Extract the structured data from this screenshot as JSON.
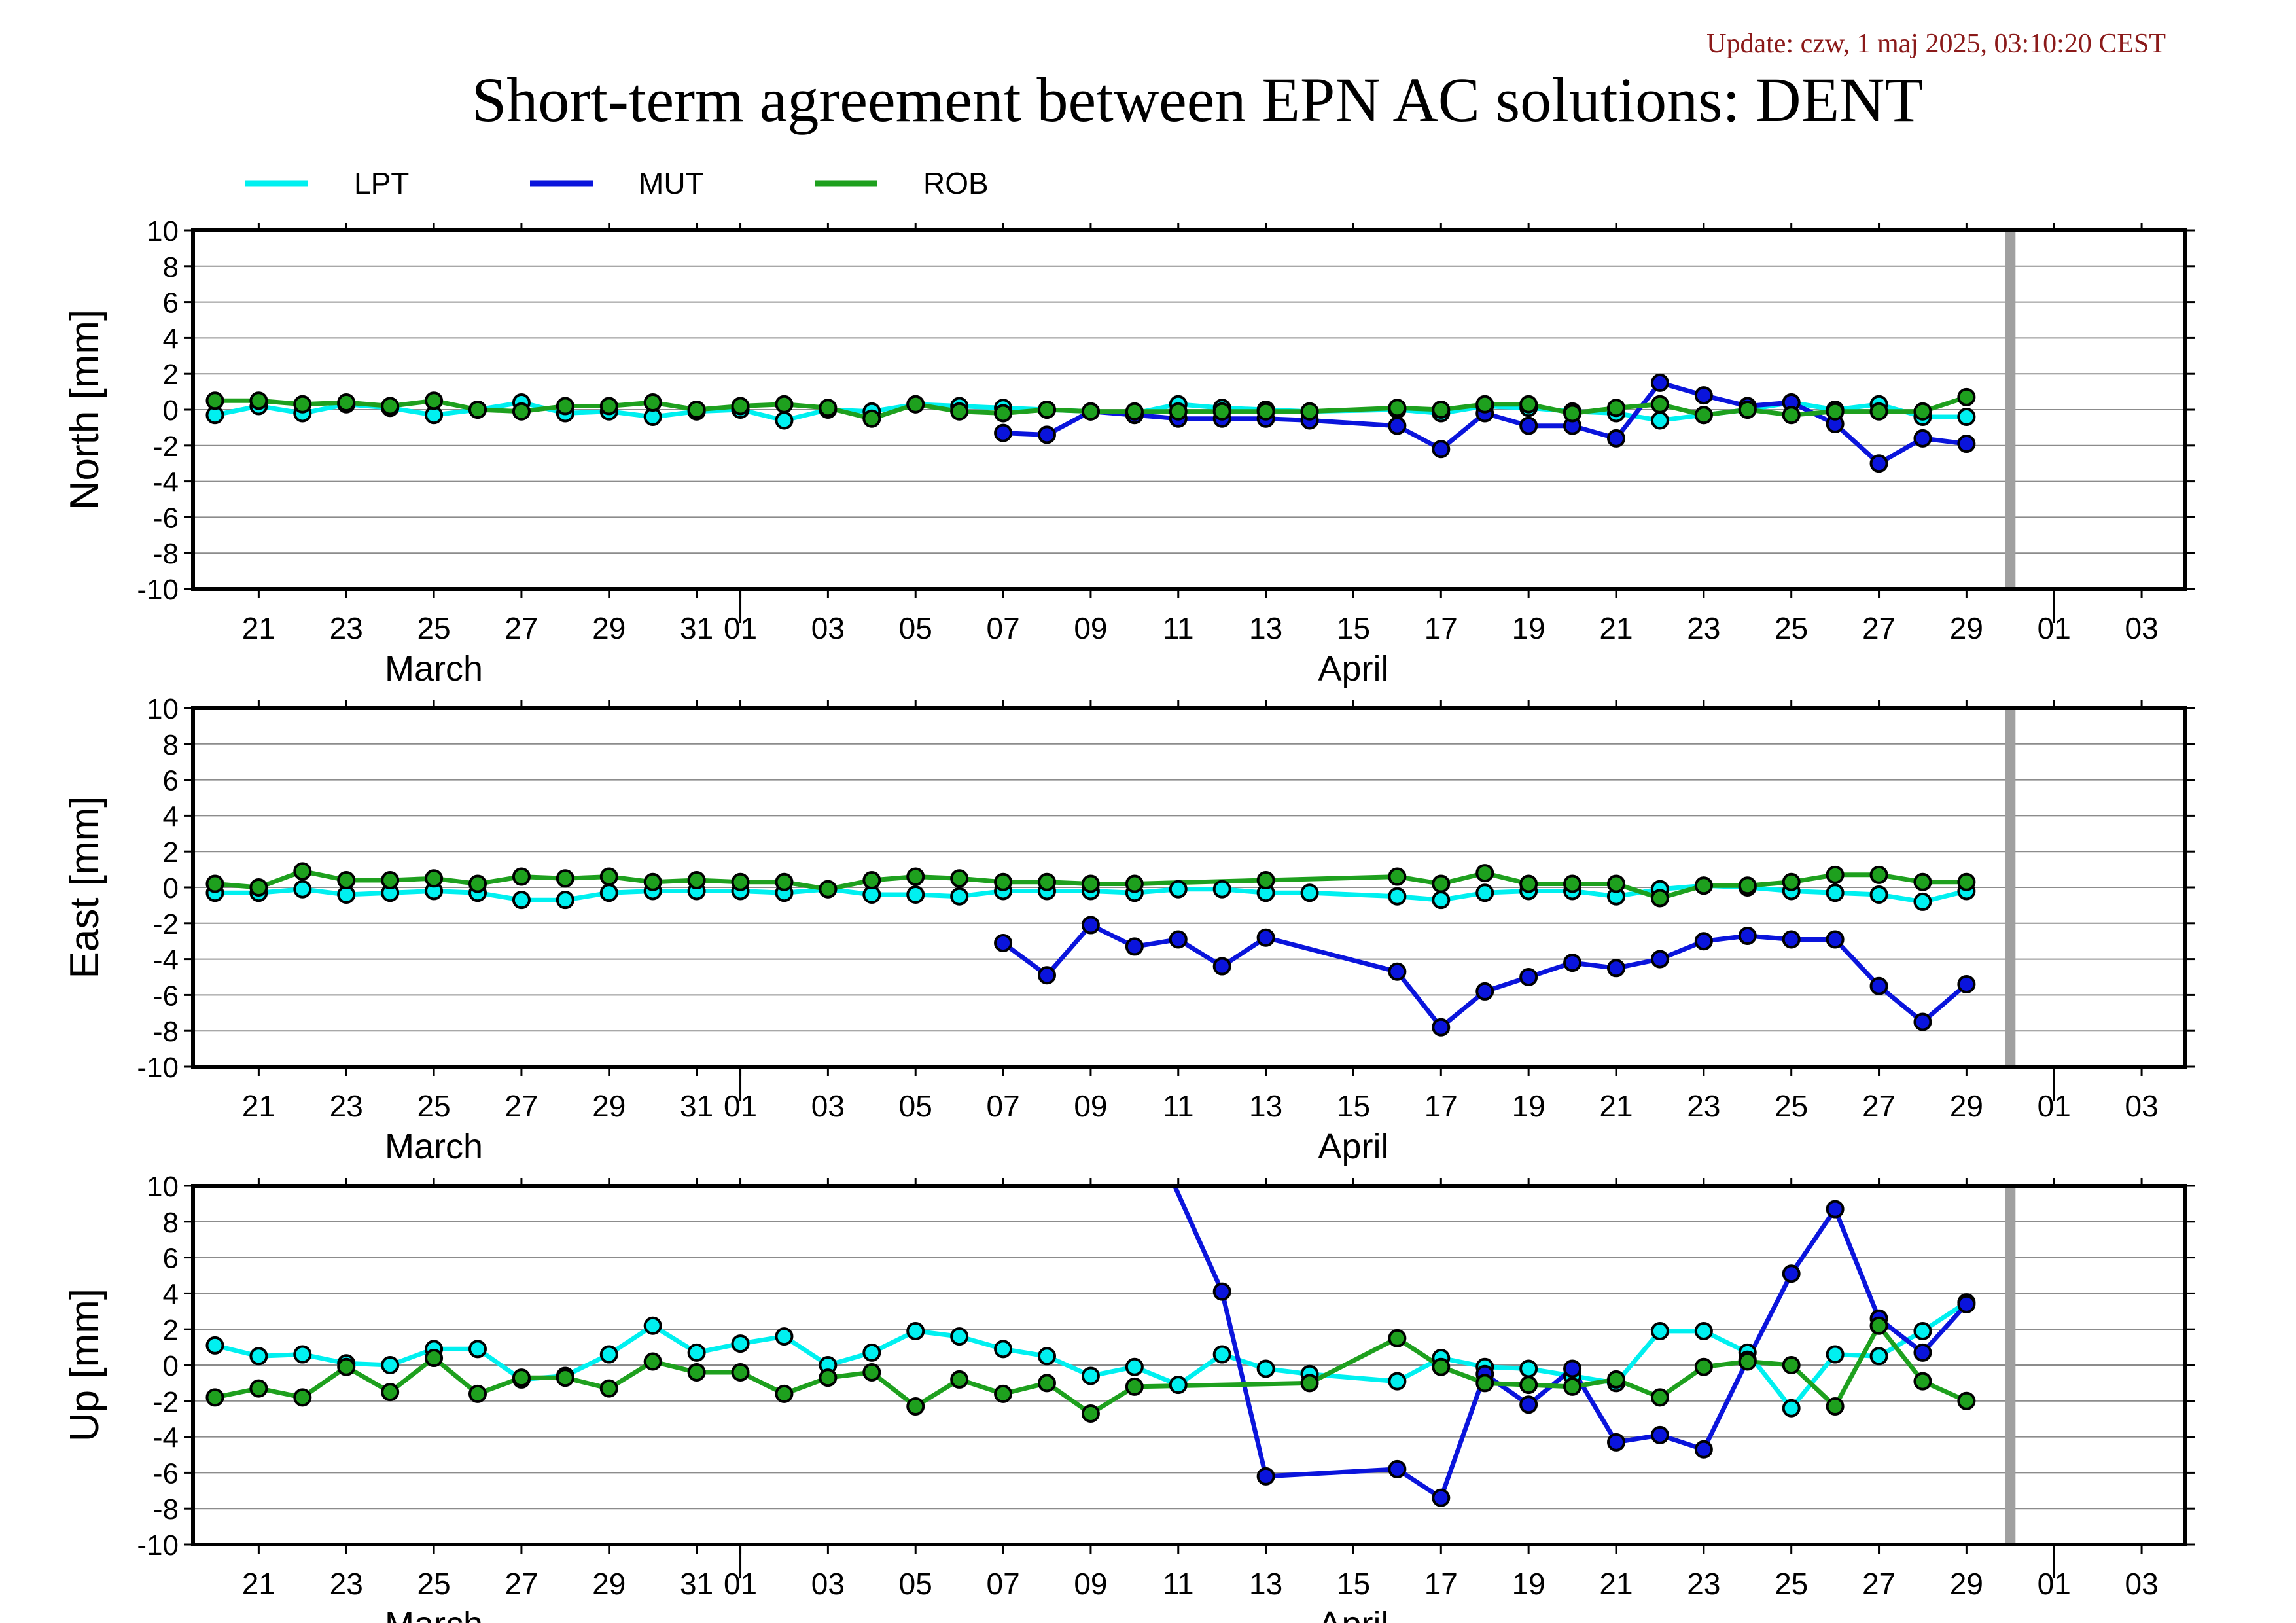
{
  "update_text": "Update: czw, 1 maj 2025, 03:10:20 CEST",
  "title": "Short-term agreement between EPN AC solutions: DENT",
  "colors": {
    "LPT": "#00f0f0",
    "MUT": "#0a14dc",
    "ROB": "#1ea01e",
    "marker_outline": "#000000",
    "today_bar": "#a0a0a0",
    "update_text": "#8b1a1a"
  },
  "chart_data": [
    {
      "type": "line",
      "panel": "north",
      "title": "Short-term agreement between EPN AC solutions: DENT",
      "ylabel": "North [mm]",
      "x_unit": "day",
      "x_range": [
        "2025-03-19T12:00",
        "2025-05-04"
      ],
      "ylim": [
        -10,
        10
      ],
      "yticks": [
        -10,
        -8,
        -6,
        -4,
        -2,
        0,
        2,
        4,
        6,
        8,
        10
      ],
      "xtick_labels": [
        "21",
        "23",
        "25",
        "27",
        "29",
        "31",
        "01",
        "03",
        "05",
        "07",
        "09",
        "11",
        "13",
        "15",
        "17",
        "19",
        "21",
        "23",
        "25",
        "27",
        "29",
        "01",
        "03"
      ],
      "xtick_dates": [
        "2025-03-21",
        "2025-03-23",
        "2025-03-25",
        "2025-03-27",
        "2025-03-29",
        "2025-03-31",
        "2025-04-01",
        "2025-04-03",
        "2025-04-05",
        "2025-04-07",
        "2025-04-09",
        "2025-04-11",
        "2025-04-13",
        "2025-04-15",
        "2025-04-17",
        "2025-04-19",
        "2025-04-21",
        "2025-04-23",
        "2025-04-25",
        "2025-04-27",
        "2025-04-29",
        "2025-05-01",
        "2025-05-03"
      ],
      "month_labels": [
        {
          "label": "March",
          "date": "2025-03-25"
        },
        {
          "label": "April",
          "date": "2025-04-15"
        }
      ],
      "month_boundaries": [
        "2025-04-01",
        "2025-05-01"
      ],
      "today_marker": "2025-04-30",
      "grid": "horizontal",
      "legend": "top",
      "series": [
        {
          "name": "LPT",
          "x": [
            "2025-03-20",
            "2025-03-21",
            "2025-03-22",
            "2025-03-23",
            "2025-03-24",
            "2025-03-25",
            "2025-03-26",
            "2025-03-27",
            "2025-03-28",
            "2025-03-29",
            "2025-03-30",
            "2025-03-31",
            "2025-04-01",
            "2025-04-02",
            "2025-04-03",
            "2025-04-04",
            "2025-04-05",
            "2025-04-06",
            "2025-04-07",
            "2025-04-08",
            "2025-04-09",
            "2025-04-10",
            "2025-04-11",
            "2025-04-12",
            "2025-04-13",
            "2025-04-14",
            "2025-04-16",
            "2025-04-17",
            "2025-04-18",
            "2025-04-19",
            "2025-04-20",
            "2025-04-21",
            "2025-04-22",
            "2025-04-23",
            "2025-04-24",
            "2025-04-25",
            "2025-04-26",
            "2025-04-27",
            "2025-04-28",
            "2025-04-29"
          ],
          "y": [
            -0.3,
            0.2,
            -0.2,
            0.3,
            0.1,
            -0.3,
            0.0,
            0.4,
            -0.2,
            -0.1,
            -0.4,
            -0.1,
            0.0,
            -0.6,
            0.0,
            -0.1,
            0.3,
            0.2,
            0.1,
            0.0,
            -0.1,
            -0.2,
            0.3,
            0.1,
            0.0,
            -0.1,
            0.0,
            -0.2,
            0.2,
            0.1,
            -0.1,
            -0.2,
            -0.6,
            -0.3,
            0.0,
            0.4,
            0.0,
            0.3,
            -0.4,
            -0.4
          ]
        },
        {
          "name": "MUT",
          "x": [
            "2025-04-07",
            "2025-04-08",
            "2025-04-09",
            "2025-04-10",
            "2025-04-11",
            "2025-04-12",
            "2025-04-13",
            "2025-04-14",
            "2025-04-16",
            "2025-04-17",
            "2025-04-18",
            "2025-04-19",
            "2025-04-20",
            "2025-04-21",
            "2025-04-22",
            "2025-04-23",
            "2025-04-24",
            "2025-04-25",
            "2025-04-26",
            "2025-04-27",
            "2025-04-28",
            "2025-04-29"
          ],
          "y": [
            -1.3,
            -1.4,
            -0.1,
            -0.3,
            -0.5,
            -0.5,
            -0.5,
            -0.6,
            -0.9,
            -2.2,
            -0.2,
            -0.9,
            -0.9,
            -1.6,
            1.5,
            0.8,
            0.2,
            0.4,
            -0.8,
            -3.0,
            -1.6,
            -1.9
          ]
        },
        {
          "name": "ROB",
          "x": [
            "2025-03-20",
            "2025-03-21",
            "2025-03-22",
            "2025-03-23",
            "2025-03-24",
            "2025-03-25",
            "2025-03-26",
            "2025-03-27",
            "2025-03-28",
            "2025-03-29",
            "2025-03-30",
            "2025-03-31",
            "2025-04-01",
            "2025-04-02",
            "2025-04-03",
            "2025-04-04",
            "2025-04-05",
            "2025-04-06",
            "2025-04-07",
            "2025-04-08",
            "2025-04-09",
            "2025-04-10",
            "2025-04-11",
            "2025-04-12",
            "2025-04-13",
            "2025-04-14",
            "2025-04-16",
            "2025-04-17",
            "2025-04-18",
            "2025-04-19",
            "2025-04-20",
            "2025-04-21",
            "2025-04-22",
            "2025-04-23",
            "2025-04-24",
            "2025-04-25",
            "2025-04-26",
            "2025-04-27",
            "2025-04-28",
            "2025-04-29"
          ],
          "y": [
            0.5,
            0.5,
            0.3,
            0.4,
            0.2,
            0.5,
            0.0,
            -0.1,
            0.2,
            0.2,
            0.4,
            0.0,
            0.2,
            0.3,
            0.1,
            -0.5,
            0.3,
            -0.1,
            -0.2,
            0.0,
            -0.1,
            -0.1,
            -0.1,
            -0.1,
            -0.1,
            -0.1,
            0.1,
            0.0,
            0.3,
            0.3,
            -0.2,
            0.1,
            0.3,
            -0.3,
            0.0,
            -0.3,
            -0.1,
            -0.1,
            -0.1,
            0.7
          ]
        }
      ]
    },
    {
      "type": "line",
      "panel": "east",
      "ylabel": "East [mm]",
      "x_unit": "day",
      "x_range": [
        "2025-03-19T12:00",
        "2025-05-04"
      ],
      "ylim": [
        -10,
        10
      ],
      "yticks": [
        -10,
        -8,
        -6,
        -4,
        -2,
        0,
        2,
        4,
        6,
        8,
        10
      ],
      "xtick_labels": [
        "21",
        "23",
        "25",
        "27",
        "29",
        "31",
        "01",
        "03",
        "05",
        "07",
        "09",
        "11",
        "13",
        "15",
        "17",
        "19",
        "21",
        "23",
        "25",
        "27",
        "29",
        "01",
        "03"
      ],
      "xtick_dates": [
        "2025-03-21",
        "2025-03-23",
        "2025-03-25",
        "2025-03-27",
        "2025-03-29",
        "2025-03-31",
        "2025-04-01",
        "2025-04-03",
        "2025-04-05",
        "2025-04-07",
        "2025-04-09",
        "2025-04-11",
        "2025-04-13",
        "2025-04-15",
        "2025-04-17",
        "2025-04-19",
        "2025-04-21",
        "2025-04-23",
        "2025-04-25",
        "2025-04-27",
        "2025-04-29",
        "2025-05-01",
        "2025-05-03"
      ],
      "month_labels": [
        {
          "label": "March",
          "date": "2025-03-25"
        },
        {
          "label": "April",
          "date": "2025-04-15"
        }
      ],
      "month_boundaries": [
        "2025-04-01",
        "2025-05-01"
      ],
      "today_marker": "2025-04-30",
      "grid": "horizontal",
      "series": [
        {
          "name": "LPT",
          "x": [
            "2025-03-20",
            "2025-03-21",
            "2025-03-22",
            "2025-03-23",
            "2025-03-24",
            "2025-03-25",
            "2025-03-26",
            "2025-03-27",
            "2025-03-28",
            "2025-03-29",
            "2025-03-30",
            "2025-03-31",
            "2025-04-01",
            "2025-04-02",
            "2025-04-03",
            "2025-04-04",
            "2025-04-05",
            "2025-04-06",
            "2025-04-07",
            "2025-04-08",
            "2025-04-09",
            "2025-04-10",
            "2025-04-11",
            "2025-04-12",
            "2025-04-13",
            "2025-04-14",
            "2025-04-16",
            "2025-04-17",
            "2025-04-18",
            "2025-04-19",
            "2025-04-20",
            "2025-04-21",
            "2025-04-22",
            "2025-04-23",
            "2025-04-24",
            "2025-04-25",
            "2025-04-26",
            "2025-04-27",
            "2025-04-28",
            "2025-04-29"
          ],
          "y": [
            -0.3,
            -0.3,
            -0.1,
            -0.4,
            -0.3,
            -0.2,
            -0.3,
            -0.7,
            -0.7,
            -0.3,
            -0.2,
            -0.2,
            -0.2,
            -0.3,
            -0.1,
            -0.4,
            -0.4,
            -0.5,
            -0.2,
            -0.2,
            -0.2,
            -0.3,
            -0.1,
            -0.1,
            -0.3,
            -0.3,
            -0.5,
            -0.7,
            -0.3,
            -0.2,
            -0.2,
            -0.5,
            -0.1,
            0.1,
            0.0,
            -0.2,
            -0.3,
            -0.4,
            -0.8,
            -0.2
          ]
        },
        {
          "name": "MUT",
          "x": [
            "2025-04-07",
            "2025-04-08",
            "2025-04-09",
            "2025-04-10",
            "2025-04-11",
            "2025-04-12",
            "2025-04-13",
            "2025-04-16",
            "2025-04-17",
            "2025-04-18",
            "2025-04-19",
            "2025-04-20",
            "2025-04-21",
            "2025-04-22",
            "2025-04-23",
            "2025-04-24",
            "2025-04-25",
            "2025-04-26",
            "2025-04-27",
            "2025-04-28",
            "2025-04-29"
          ],
          "y": [
            -3.1,
            -4.9,
            -2.1,
            -3.3,
            -2.9,
            -4.4,
            -2.8,
            -4.7,
            -7.8,
            -5.8,
            -5.0,
            -4.2,
            -4.5,
            -4.0,
            -3.0,
            -2.7,
            -2.9,
            -2.9,
            -5.5,
            -7.5,
            -5.4
          ]
        },
        {
          "name": "ROB",
          "x": [
            "2025-03-20",
            "2025-03-21",
            "2025-03-22",
            "2025-03-23",
            "2025-03-24",
            "2025-03-25",
            "2025-03-26",
            "2025-03-27",
            "2025-03-28",
            "2025-03-29",
            "2025-03-30",
            "2025-03-31",
            "2025-04-01",
            "2025-04-02",
            "2025-04-03",
            "2025-04-04",
            "2025-04-05",
            "2025-04-06",
            "2025-04-07",
            "2025-04-08",
            "2025-04-09",
            "2025-04-10",
            "2025-04-13",
            "2025-04-16",
            "2025-04-17",
            "2025-04-18",
            "2025-04-19",
            "2025-04-20",
            "2025-04-21",
            "2025-04-22",
            "2025-04-23",
            "2025-04-24",
            "2025-04-25",
            "2025-04-26",
            "2025-04-27",
            "2025-04-28",
            "2025-04-29"
          ],
          "y": [
            0.2,
            0.0,
            0.9,
            0.4,
            0.4,
            0.5,
            0.2,
            0.6,
            0.5,
            0.6,
            0.3,
            0.4,
            0.3,
            0.3,
            -0.1,
            0.4,
            0.6,
            0.5,
            0.3,
            0.3,
            0.2,
            0.2,
            0.4,
            0.6,
            0.2,
            0.8,
            0.2,
            0.2,
            0.2,
            -0.6,
            0.1,
            0.1,
            0.3,
            0.7,
            0.7,
            0.3,
            0.3
          ]
        }
      ]
    },
    {
      "type": "line",
      "panel": "up",
      "ylabel": "Up [mm]",
      "x_unit": "day",
      "x_range": [
        "2025-03-19T12:00",
        "2025-05-04"
      ],
      "ylim": [
        -10,
        10
      ],
      "yticks": [
        -10,
        -8,
        -6,
        -4,
        -2,
        0,
        2,
        4,
        6,
        8,
        10
      ],
      "xtick_labels": [
        "21",
        "23",
        "25",
        "27",
        "29",
        "31",
        "01",
        "03",
        "05",
        "07",
        "09",
        "11",
        "13",
        "15",
        "17",
        "19",
        "21",
        "23",
        "25",
        "27",
        "29",
        "01",
        "03"
      ],
      "xtick_dates": [
        "2025-03-21",
        "2025-03-23",
        "2025-03-25",
        "2025-03-27",
        "2025-03-29",
        "2025-03-31",
        "2025-04-01",
        "2025-04-03",
        "2025-04-05",
        "2025-04-07",
        "2025-04-09",
        "2025-04-11",
        "2025-04-13",
        "2025-04-15",
        "2025-04-17",
        "2025-04-19",
        "2025-04-21",
        "2025-04-23",
        "2025-04-25",
        "2025-04-27",
        "2025-04-29",
        "2025-05-01",
        "2025-05-03"
      ],
      "month_labels": [
        {
          "label": "March",
          "date": "2025-03-25"
        },
        {
          "label": "April",
          "date": "2025-04-15"
        }
      ],
      "month_boundaries": [
        "2025-04-01",
        "2025-05-01"
      ],
      "today_marker": "2025-04-30",
      "grid": "horizontal",
      "series": [
        {
          "name": "LPT",
          "x": [
            "2025-03-20",
            "2025-03-21",
            "2025-03-22",
            "2025-03-23",
            "2025-03-24",
            "2025-03-25",
            "2025-03-26",
            "2025-03-27",
            "2025-03-28",
            "2025-03-29",
            "2025-03-30",
            "2025-03-31",
            "2025-04-01",
            "2025-04-02",
            "2025-04-03",
            "2025-04-04",
            "2025-04-05",
            "2025-04-06",
            "2025-04-07",
            "2025-04-08",
            "2025-04-09",
            "2025-04-10",
            "2025-04-11",
            "2025-04-12",
            "2025-04-13",
            "2025-04-14",
            "2025-04-16",
            "2025-04-17",
            "2025-04-18",
            "2025-04-19",
            "2025-04-20",
            "2025-04-21",
            "2025-04-22",
            "2025-04-23",
            "2025-04-24",
            "2025-04-25",
            "2025-04-26",
            "2025-04-27",
            "2025-04-28",
            "2025-04-29"
          ],
          "y": [
            1.1,
            0.5,
            0.6,
            0.1,
            0.0,
            0.9,
            0.9,
            -0.8,
            -0.6,
            0.6,
            2.2,
            0.7,
            1.2,
            1.6,
            0.0,
            0.7,
            1.9,
            1.6,
            0.9,
            0.5,
            -0.6,
            -0.1,
            -1.1,
            0.6,
            -0.2,
            -0.5,
            -0.9,
            0.4,
            -0.1,
            -0.2,
            -0.6,
            -1.0,
            1.9,
            1.9,
            0.7,
            -2.4,
            0.6,
            0.5,
            1.9,
            3.5
          ]
        },
        {
          "name": "MUT",
          "x": [
            "2025-04-10T22:00",
            "2025-04-12",
            "2025-04-13",
            "2025-04-16",
            "2025-04-17",
            "2025-04-18",
            "2025-04-19",
            "2025-04-20",
            "2025-04-21",
            "2025-04-22",
            "2025-04-23",
            "2025-04-24",
            "2025-04-25",
            "2025-04-26",
            "2025-04-27",
            "2025-04-28",
            "2025-04-29"
          ],
          "y": [
            10.0,
            4.1,
            -6.2,
            -5.8,
            -7.4,
            -0.5,
            -2.2,
            -0.2,
            -4.3,
            -3.9,
            -4.7,
            0.3,
            5.1,
            8.7,
            2.6,
            0.7,
            3.4
          ],
          "marker_from": 1
        },
        {
          "name": "ROB",
          "x": [
            "2025-03-20",
            "2025-03-21",
            "2025-03-22",
            "2025-03-23",
            "2025-03-24",
            "2025-03-25",
            "2025-03-26",
            "2025-03-27",
            "2025-03-28",
            "2025-03-29",
            "2025-03-30",
            "2025-03-31",
            "2025-04-01",
            "2025-04-02",
            "2025-04-03",
            "2025-04-04",
            "2025-04-05",
            "2025-04-06",
            "2025-04-07",
            "2025-04-08",
            "2025-04-09",
            "2025-04-10",
            "2025-04-14",
            "2025-04-16",
            "2025-04-17",
            "2025-04-18",
            "2025-04-19",
            "2025-04-20",
            "2025-04-21",
            "2025-04-22",
            "2025-04-23",
            "2025-04-24",
            "2025-04-25",
            "2025-04-26",
            "2025-04-27",
            "2025-04-28",
            "2025-04-29"
          ],
          "y": [
            -1.8,
            -1.3,
            -1.8,
            -0.1,
            -1.5,
            0.4,
            -1.6,
            -0.7,
            -0.7,
            -1.3,
            0.2,
            -0.4,
            -0.4,
            -1.6,
            -0.7,
            -0.4,
            -2.3,
            -0.8,
            -1.6,
            -1.0,
            -2.7,
            -1.2,
            -1.0,
            1.5,
            -0.1,
            -1.0,
            -1.1,
            -1.2,
            -0.8,
            -1.8,
            -0.1,
            0.2,
            0.0,
            -2.3,
            2.2,
            -0.9,
            -2.0
          ]
        }
      ]
    }
  ]
}
